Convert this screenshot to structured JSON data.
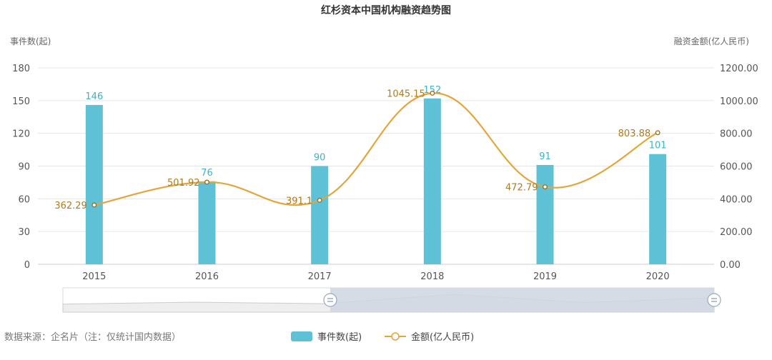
{
  "chart_data": {
    "type": "bar",
    "title": "红杉资本中国机构融资趋势图",
    "categories": [
      "2015",
      "2016",
      "2017",
      "2018",
      "2019",
      "2020"
    ],
    "series": [
      {
        "name": "事件数(起)",
        "type": "bar",
        "axis": "left",
        "values": [
          146,
          76,
          90,
          152,
          91,
          101
        ]
      },
      {
        "name": "金额(亿人民币)",
        "type": "line",
        "axis": "right",
        "values": [
          362.29,
          501.92,
          391.1,
          1045.15,
          472.79,
          803.88
        ]
      }
    ],
    "left_axis": {
      "label": "事件数(起)",
      "ylim": [
        0,
        180
      ],
      "ticks": [
        "0",
        "30",
        "60",
        "90",
        "120",
        "150",
        "180"
      ]
    },
    "right_axis": {
      "label": "融资金额(亿人民币)",
      "ylim": [
        0,
        1200
      ],
      "ticks": [
        "0.00",
        "200.00",
        "400.00",
        "600.00",
        "800.00",
        "1000.00",
        "1200.00"
      ]
    },
    "grid": true,
    "legend": "bottom",
    "source_note": "数据来源：企名片（注：仅统计国内数据）",
    "colors": {
      "bar": "#5ec1d6",
      "line": "#e3a63b",
      "bar_label": "#3bb2c9",
      "line_label": "#b07a1e",
      "grid": "#e6e6e6"
    }
  }
}
